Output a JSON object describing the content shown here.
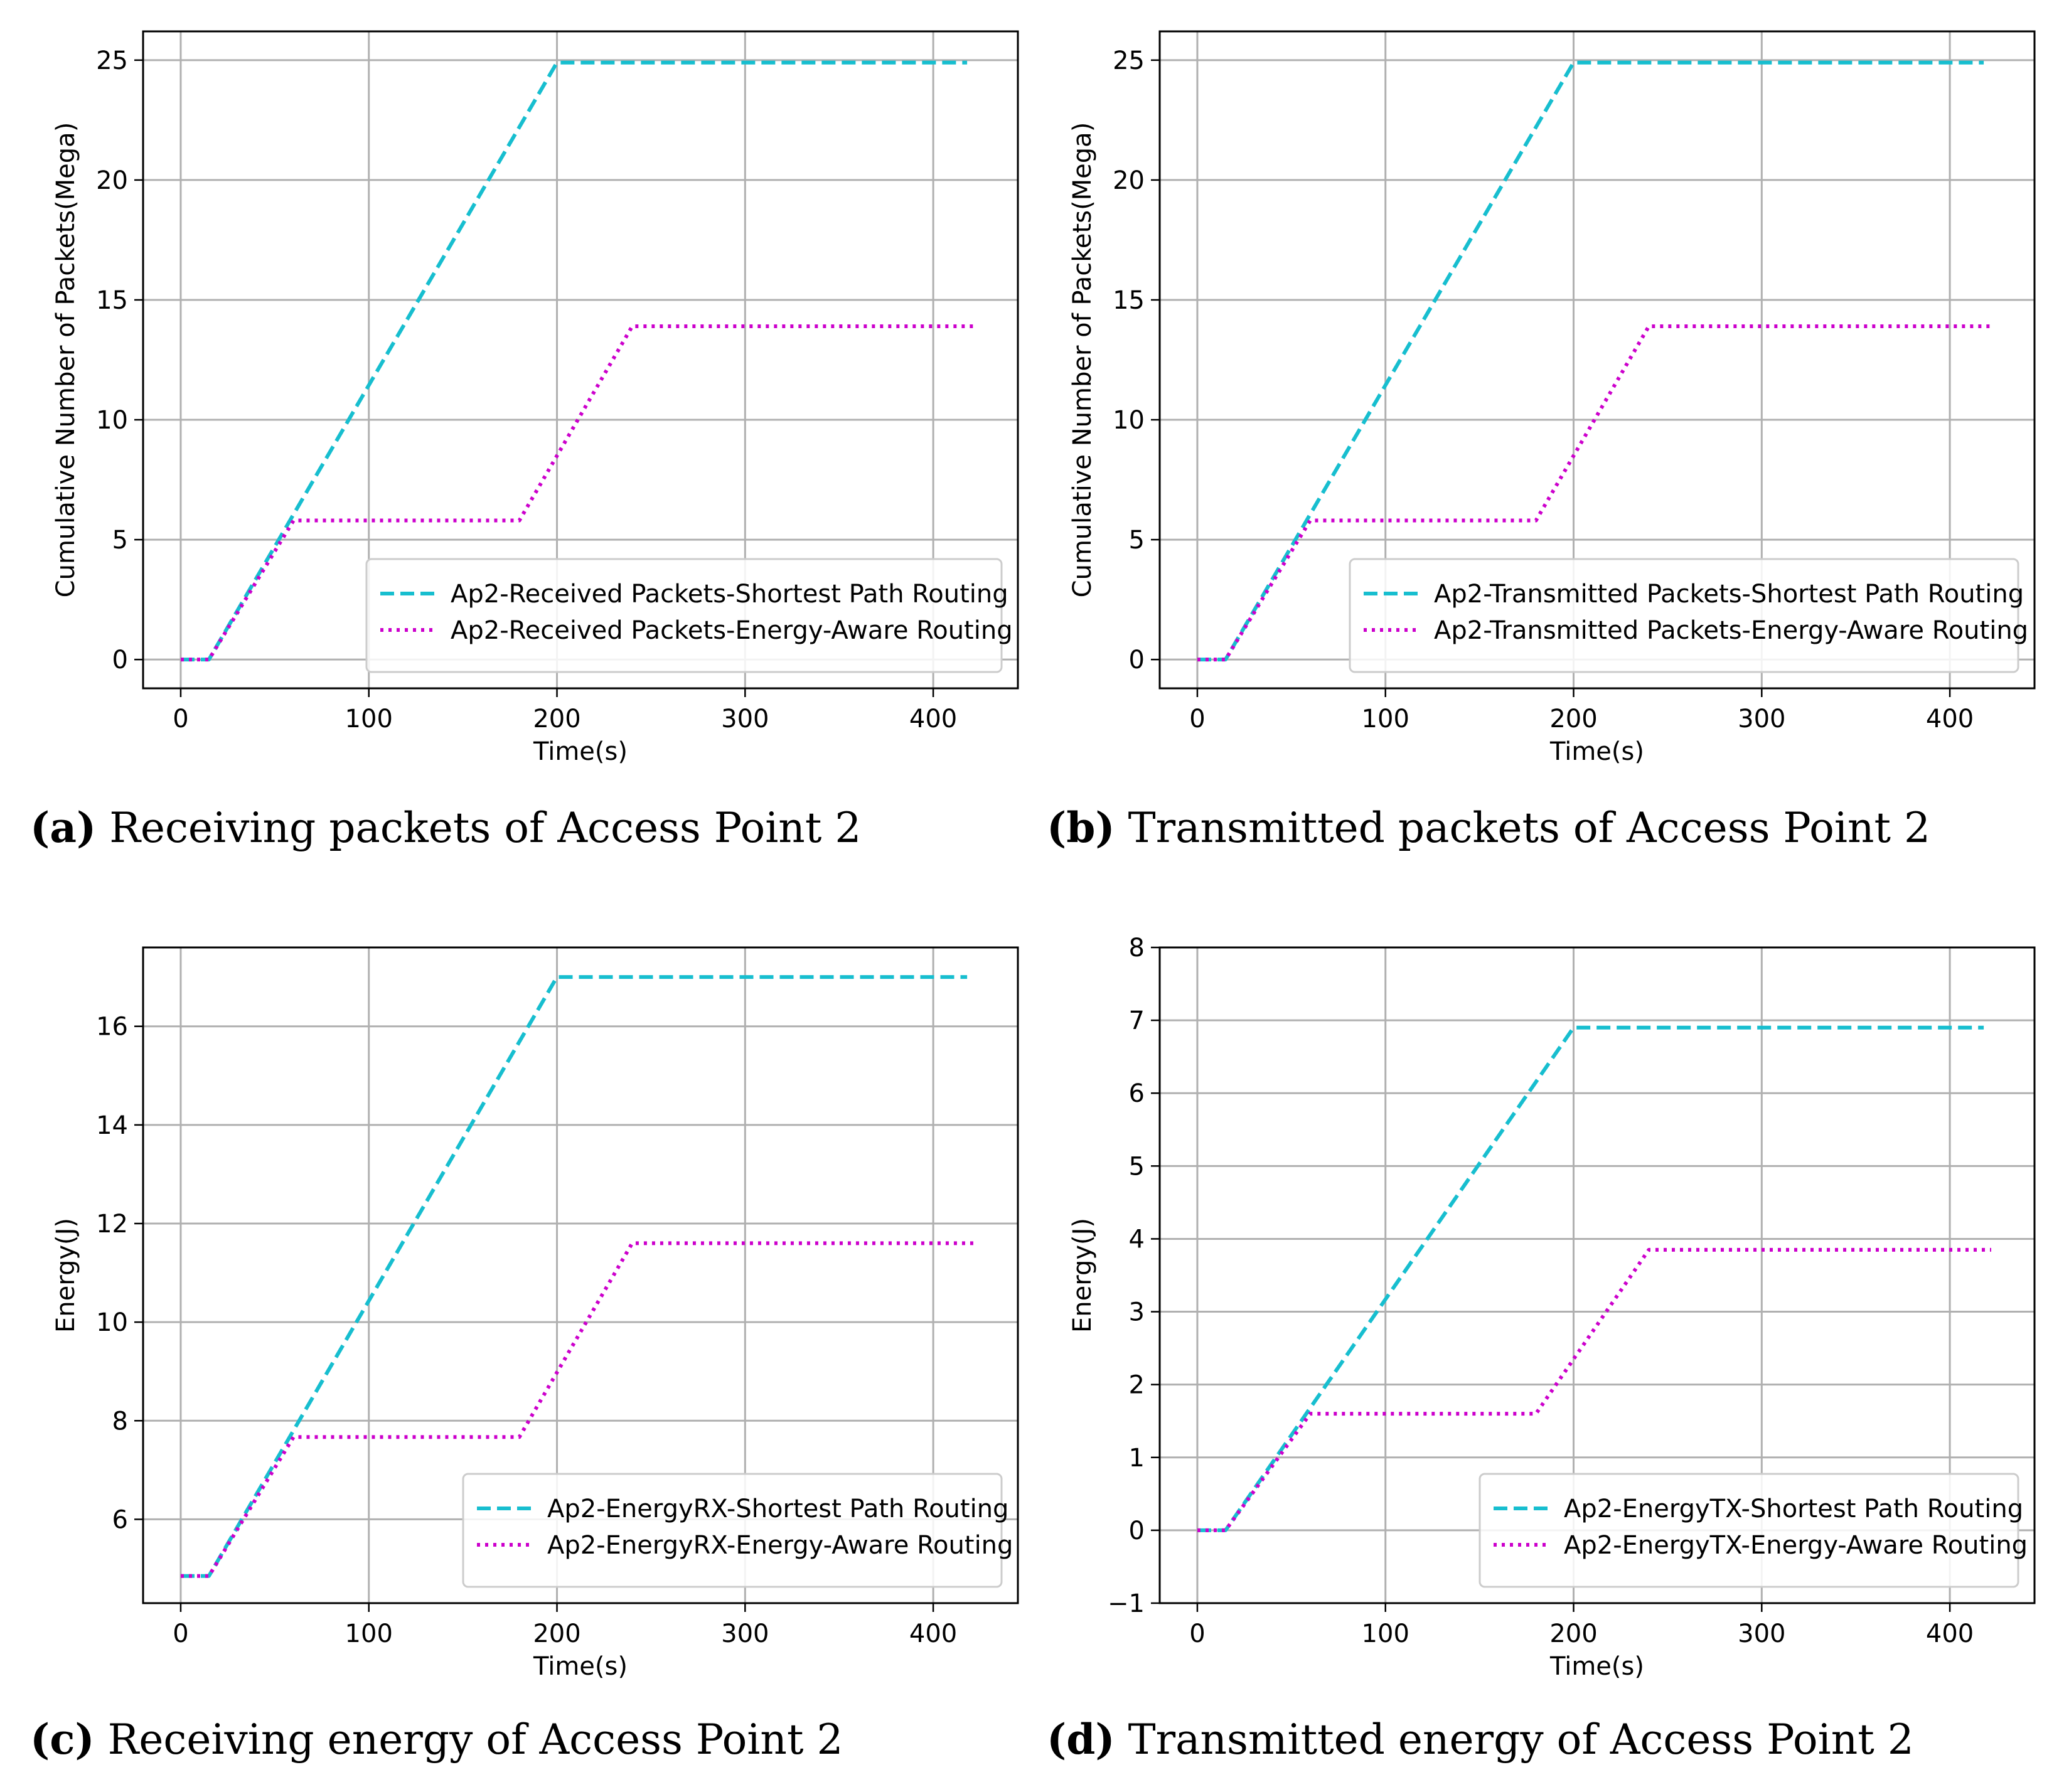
{
  "chart_data": [
    {
      "id": "a",
      "type": "line",
      "caption_label": "(a)",
      "caption_text": "Receiving packets of Access Point 2",
      "xlabel": "Time(s)",
      "ylabel": "Cumulative Number of Packets(Mega)",
      "xlim": [
        -20,
        445
      ],
      "ylim": [
        -1.2,
        26.2
      ],
      "xticks": [
        0,
        100,
        200,
        300,
        400
      ],
      "yticks": [
        0,
        5,
        10,
        15,
        20,
        25
      ],
      "grid": true,
      "legend_position": "lower-right",
      "series": [
        {
          "name": "Ap2-Received Packets-Shortest Path Routing",
          "color": "#17becf",
          "style": "dashed",
          "x": [
            0,
            15,
            200,
            418
          ],
          "y": [
            0,
            0,
            24.9,
            24.9
          ]
        },
        {
          "name": "Ap2-Received Packets-Energy-Aware Routing",
          "color": "#cc00cc",
          "style": "dotted",
          "x": [
            0,
            15,
            60,
            180,
            240,
            422
          ],
          "y": [
            0,
            0,
            5.8,
            5.8,
            13.9,
            13.9
          ]
        }
      ]
    },
    {
      "id": "b",
      "type": "line",
      "caption_label": "(b)",
      "caption_text": "Transmitted packets of Access Point 2",
      "xlabel": "Time(s)",
      "ylabel": "Cumulative Number of Packets(Mega)",
      "xlim": [
        -20,
        445
      ],
      "ylim": [
        -1.2,
        26.2
      ],
      "xticks": [
        0,
        100,
        200,
        300,
        400
      ],
      "yticks": [
        0,
        5,
        10,
        15,
        20,
        25
      ],
      "grid": true,
      "legend_position": "lower-right",
      "series": [
        {
          "name": "Ap2-Transmitted Packets-Shortest Path Routing",
          "color": "#17becf",
          "style": "dashed",
          "x": [
            0,
            15,
            200,
            418
          ],
          "y": [
            0,
            0,
            24.9,
            24.9
          ]
        },
        {
          "name": "Ap2-Transmitted Packets-Energy-Aware Routing",
          "color": "#cc00cc",
          "style": "dotted",
          "x": [
            0,
            15,
            60,
            180,
            240,
            422
          ],
          "y": [
            0,
            0,
            5.8,
            5.8,
            13.9,
            13.9
          ]
        }
      ]
    },
    {
      "id": "c",
      "type": "line",
      "caption_label": "(c)",
      "caption_text": "Receiving energy of Access Point 2",
      "xlabel": "Time(s)",
      "ylabel": "Energy(J)",
      "xlim": [
        -20,
        445
      ],
      "ylim": [
        4.3,
        17.6
      ],
      "xticks": [
        0,
        100,
        200,
        300,
        400
      ],
      "yticks": [
        6,
        8,
        10,
        12,
        14,
        16
      ],
      "grid": true,
      "legend_position": "lower-right",
      "series": [
        {
          "name": "Ap2-EnergyRX-Shortest Path Routing",
          "color": "#17becf",
          "style": "dashed",
          "x": [
            0,
            15,
            200,
            418
          ],
          "y": [
            4.85,
            4.85,
            17.0,
            17.0
          ]
        },
        {
          "name": "Ap2-EnergyRX-Energy-Aware Routing",
          "color": "#cc00cc",
          "style": "dotted",
          "x": [
            0,
            15,
            60,
            180,
            240,
            422
          ],
          "y": [
            4.85,
            4.85,
            7.67,
            7.67,
            11.6,
            11.6
          ]
        }
      ]
    },
    {
      "id": "d",
      "type": "line",
      "caption_label": "(d)",
      "caption_text": "Transmitted energy of Access Point 2",
      "xlabel": "Time(s)",
      "ylabel": "Energy(J)",
      "xlim": [
        -20,
        445
      ],
      "ylim": [
        -1,
        8
      ],
      "xticks": [
        0,
        100,
        200,
        300,
        400
      ],
      "yticks": [
        -1,
        0,
        1,
        2,
        3,
        4,
        5,
        6,
        7,
        8
      ],
      "grid": true,
      "legend_position": "lower-right",
      "series": [
        {
          "name": "Ap2-EnergyTX-Shortest Path Routing",
          "color": "#17becf",
          "style": "dashed",
          "x": [
            0,
            15,
            200,
            418
          ],
          "y": [
            0,
            0,
            6.9,
            6.9
          ]
        },
        {
          "name": "Ap2-EnergyTX-Energy-Aware Routing",
          "color": "#cc00cc",
          "style": "dotted",
          "x": [
            0,
            15,
            60,
            180,
            240,
            422
          ],
          "y": [
            0,
            0,
            1.6,
            1.6,
            3.85,
            3.85
          ]
        }
      ]
    }
  ]
}
